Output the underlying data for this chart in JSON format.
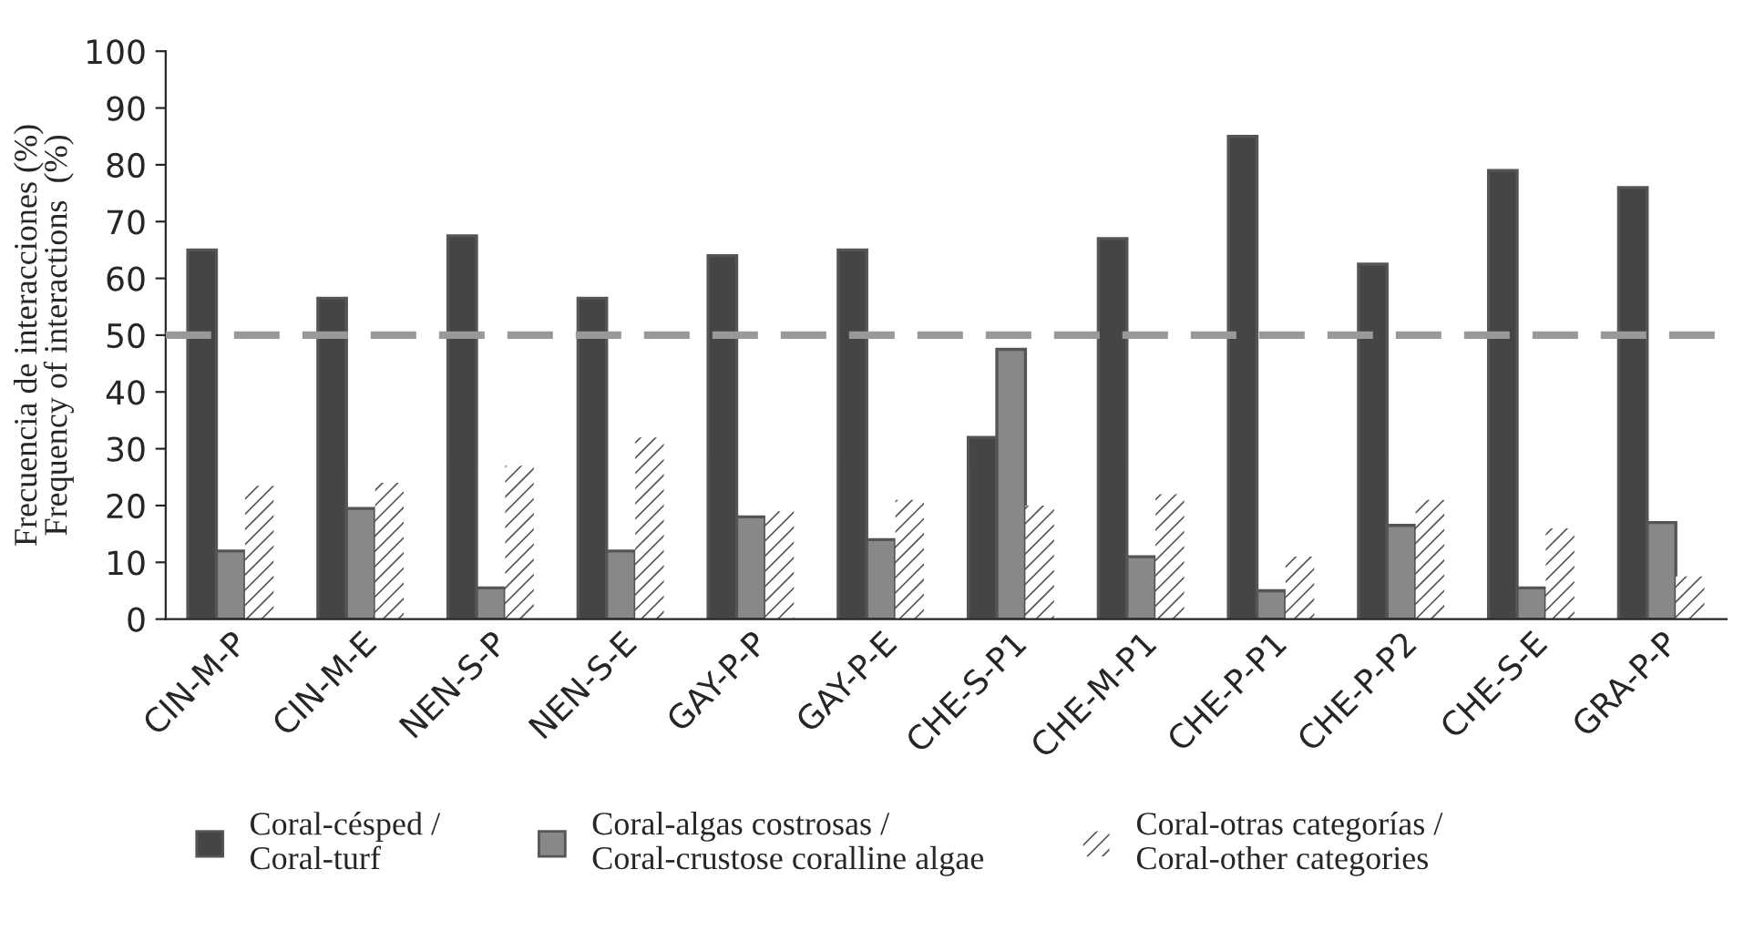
{
  "chart_data": {
    "type": "bar",
    "ylabel": "Frecuencia de interacciones (%)\nFrequency of interactions  (%)",
    "categories": [
      "CIN-M-P",
      "CIN-M-E",
      "NEN-S-P",
      "NEN-S-E",
      "GAY-P-P",
      "GAY-P-E",
      "CHE-S-P1",
      "CHE-M-P1",
      "CHE-P-P1",
      "CHE-P-P2",
      "CHE-S-E",
      "GRA-P-P"
    ],
    "series": [
      {
        "name": "Coral-césped /\nCoral-turf",
        "color": "#454545",
        "values": [
          65,
          56.5,
          67.5,
          56.5,
          64,
          65,
          32,
          67,
          85,
          62.5,
          79,
          76
        ]
      },
      {
        "name": "Coral-algas costrosas /\nCoral-crustose coralline algae",
        "color": "#888888",
        "values": [
          12,
          19.5,
          5.5,
          12,
          18,
          14,
          47.5,
          11,
          5,
          16.5,
          5.5,
          17
        ]
      },
      {
        "name": "Coral-otras categorías /\nCoral-other categories",
        "color": "#ffffff",
        "values": [
          23.5,
          24,
          27,
          32,
          19,
          21,
          20,
          22,
          11,
          21,
          16,
          7.5
        ]
      }
    ],
    "ylim": [
      0,
      100
    ],
    "yticks": [
      0,
      10,
      20,
      30,
      40,
      50,
      60,
      70,
      80,
      90,
      100
    ],
    "ref_lines": [
      {
        "axis": "y",
        "value": 50,
        "color": "#999999",
        "line_style": "dashed"
      }
    ],
    "grid": false,
    "legend": "bottom"
  }
}
